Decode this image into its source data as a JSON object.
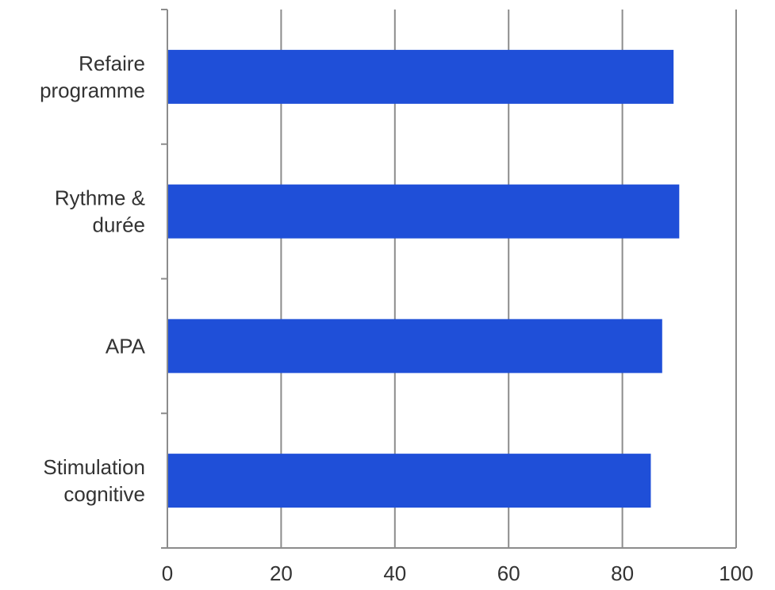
{
  "chart_data": {
    "type": "bar",
    "orientation": "horizontal",
    "categories": [
      [
        "Refaire",
        "programme"
      ],
      [
        "Rythme &",
        "durée"
      ],
      [
        "APA"
      ],
      [
        "Stimulation",
        "cognitive"
      ]
    ],
    "values": [
      89,
      90,
      87,
      85
    ],
    "xlim": [
      0,
      100
    ],
    "x_ticks": [
      0,
      20,
      40,
      60,
      80,
      100
    ],
    "grid": true,
    "legend": "none",
    "bar_color": "#1f4fd8",
    "title": "",
    "xlabel": "",
    "ylabel": ""
  }
}
